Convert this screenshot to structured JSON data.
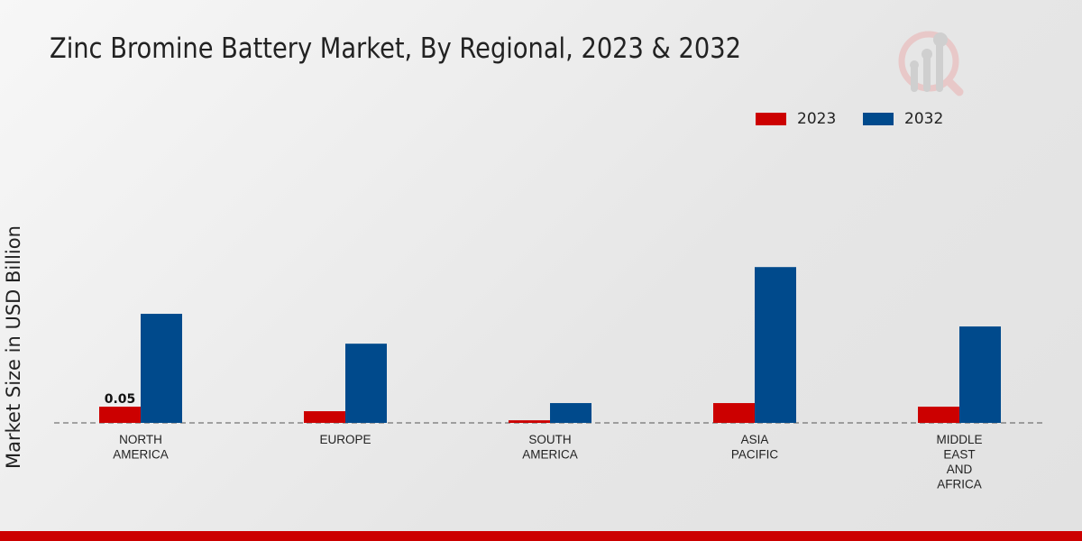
{
  "chart_data": {
    "type": "bar",
    "title": "Zinc Bromine Battery Market, By Regional, 2023 & 2032",
    "xlabel": "",
    "ylabel": "Market Size in USD Billion",
    "categories": [
      "NORTH\nAMERICA",
      "EUROPE",
      "SOUTH\nAMERICA",
      "ASIA\nPACIFIC",
      "MIDDLE\nEAST\nAND\nAFRICA"
    ],
    "series": [
      {
        "name": "2023",
        "color": "#cc0000",
        "values": [
          0.05,
          0.036,
          0.008,
          0.061,
          0.05
        ]
      },
      {
        "name": "2032",
        "color": "#004a8c",
        "values": [
          0.336,
          0.244,
          0.061,
          0.48,
          0.297
        ]
      }
    ],
    "data_labels": [
      {
        "series": "2023",
        "category_index": 0,
        "text": "0.05"
      }
    ],
    "grid": false,
    "legend_position": "top-right"
  }
}
